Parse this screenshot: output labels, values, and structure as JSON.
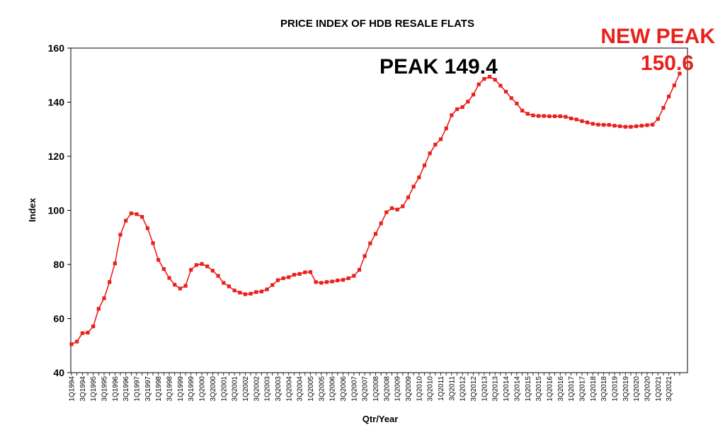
{
  "chart_data": {
    "type": "line",
    "title": "PRICE INDEX OF HDB RESALE FLATS",
    "xlabel": "Qtr/Year",
    "ylabel": "Index",
    "ylim": [
      40,
      160
    ],
    "yticks": [
      40,
      60,
      80,
      100,
      120,
      140,
      160
    ],
    "grid": false,
    "x_tick_labels": [
      "1Q1994",
      "3Q1994",
      "1Q1995",
      "3Q1995",
      "1Q1996",
      "3Q1996",
      "1Q1997",
      "3Q1997",
      "1Q1998",
      "3Q1998",
      "1Q1999",
      "3Q1999",
      "1Q2000",
      "3Q2000",
      "1Q2001",
      "3Q2001",
      "1Q2002",
      "3Q2002",
      "1Q2003",
      "3Q2003",
      "1Q2004",
      "3Q2004",
      "1Q2005",
      "3Q2005",
      "1Q2006",
      "3Q2006",
      "1Q2007",
      "3Q2007",
      "1Q2008",
      "3Q2008",
      "1Q2009",
      "3Q2009",
      "1Q2010",
      "3Q2010",
      "1Q2011",
      "3Q2011",
      "1Q2012",
      "3Q2012",
      "1Q2013",
      "3Q2013",
      "1Q2014",
      "3Q2014",
      "1Q2015",
      "3Q2015",
      "1Q2016",
      "3Q2016",
      "1Q2017",
      "3Q2017",
      "1Q2018",
      "3Q2018",
      "1Q2019",
      "3Q2019",
      "1Q2020",
      "3Q2020",
      "1Q2021",
      "3Q2021"
    ],
    "series": [
      {
        "color": "#e8211c",
        "values": [
          50.5,
          51.5,
          54.6,
          54.8,
          57.1,
          63.6,
          67.5,
          73.5,
          80.4,
          91.0,
          96.2,
          98.9,
          98.6,
          97.6,
          93.4,
          87.9,
          81.7,
          78.3,
          75.0,
          72.5,
          71.1,
          72.1,
          78.0,
          79.8,
          80.2,
          79.3,
          77.7,
          75.8,
          73.2,
          71.9,
          70.4,
          69.6,
          69.0,
          69.2,
          69.8,
          70.0,
          70.8,
          72.4,
          74.2,
          74.9,
          75.3,
          76.2,
          76.5,
          77.1,
          77.2,
          73.5,
          73.2,
          73.5,
          73.7,
          74.1,
          74.3,
          74.9,
          75.8,
          78.0,
          83.1,
          87.8,
          91.3,
          95.2,
          99.3,
          100.8,
          100.3,
          101.5,
          104.8,
          108.8,
          112.2,
          116.6,
          121.1,
          124.3,
          126.3,
          130.3,
          135.2,
          137.4,
          138.2,
          140.2,
          142.8,
          146.6,
          148.6,
          149.4,
          148.3,
          146.1,
          143.9,
          141.5,
          139.5,
          136.9,
          135.7,
          135.1,
          134.9,
          134.9,
          134.8,
          134.8,
          134.8,
          134.6,
          134.0,
          133.6,
          133.0,
          132.5,
          132.0,
          131.7,
          131.6,
          131.6,
          131.3,
          131.1,
          130.9,
          130.9,
          131.1,
          131.3,
          131.5,
          131.7,
          133.8,
          137.9,
          142.1,
          146.2,
          150.6
        ]
      }
    ],
    "annotations": {
      "peak": {
        "text": "PEAK 149.4",
        "x_index": 77,
        "value": 149.4
      },
      "new_peak_line1": {
        "text": "NEW PEAK",
        "color": "#e8211c"
      },
      "new_peak_line2": {
        "text": "150.6",
        "color": "#e8211c"
      }
    }
  }
}
